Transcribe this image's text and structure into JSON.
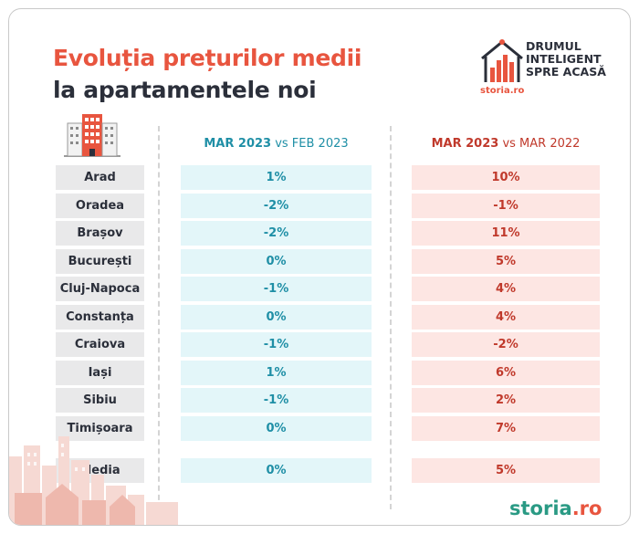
{
  "title": {
    "line1": "Evoluția prețurilor medii",
    "line2": "la apartamentele noi"
  },
  "brand": {
    "tagline_line1": "DRUMUL",
    "tagline_line2": "INTELIGENT",
    "tagline_line3": "SPRE ACASĂ",
    "small_logo": "storia.ro"
  },
  "columns": {
    "col1_bold": "MAR 2023",
    "col1_rest": " vs FEB 2023",
    "col2_bold": "MAR 2023",
    "col2_rest": " vs MAR 2022"
  },
  "rows": [
    {
      "city": "Arad",
      "mom": "1%",
      "yoy": "10%"
    },
    {
      "city": "Oradea",
      "mom": "-2%",
      "yoy": "-1%"
    },
    {
      "city": "Brașov",
      "mom": "-2%",
      "yoy": "11%"
    },
    {
      "city": "București",
      "mom": "0%",
      "yoy": "5%"
    },
    {
      "city": "Cluj-Napoca",
      "mom": "-1%",
      "yoy": "4%"
    },
    {
      "city": "Constanța",
      "mom": "0%",
      "yoy": "4%"
    },
    {
      "city": "Craiova",
      "mom": "-1%",
      "yoy": "-2%"
    },
    {
      "city": "Iași",
      "mom": "1%",
      "yoy": "6%"
    },
    {
      "city": "Sibiu",
      "mom": "-1%",
      "yoy": "2%"
    },
    {
      "city": "Timișoara",
      "mom": "0%",
      "yoy": "7%"
    }
  ],
  "average": {
    "city": "Media",
    "mom": "0%",
    "yoy": "5%"
  },
  "footer_logo": {
    "part1": "storia",
    "part2": ".ro"
  },
  "colors": {
    "accent": "#e8553f",
    "teal": "#1f8fa6",
    "dark_red": "#c0392b",
    "green": "#2a9a84"
  }
}
